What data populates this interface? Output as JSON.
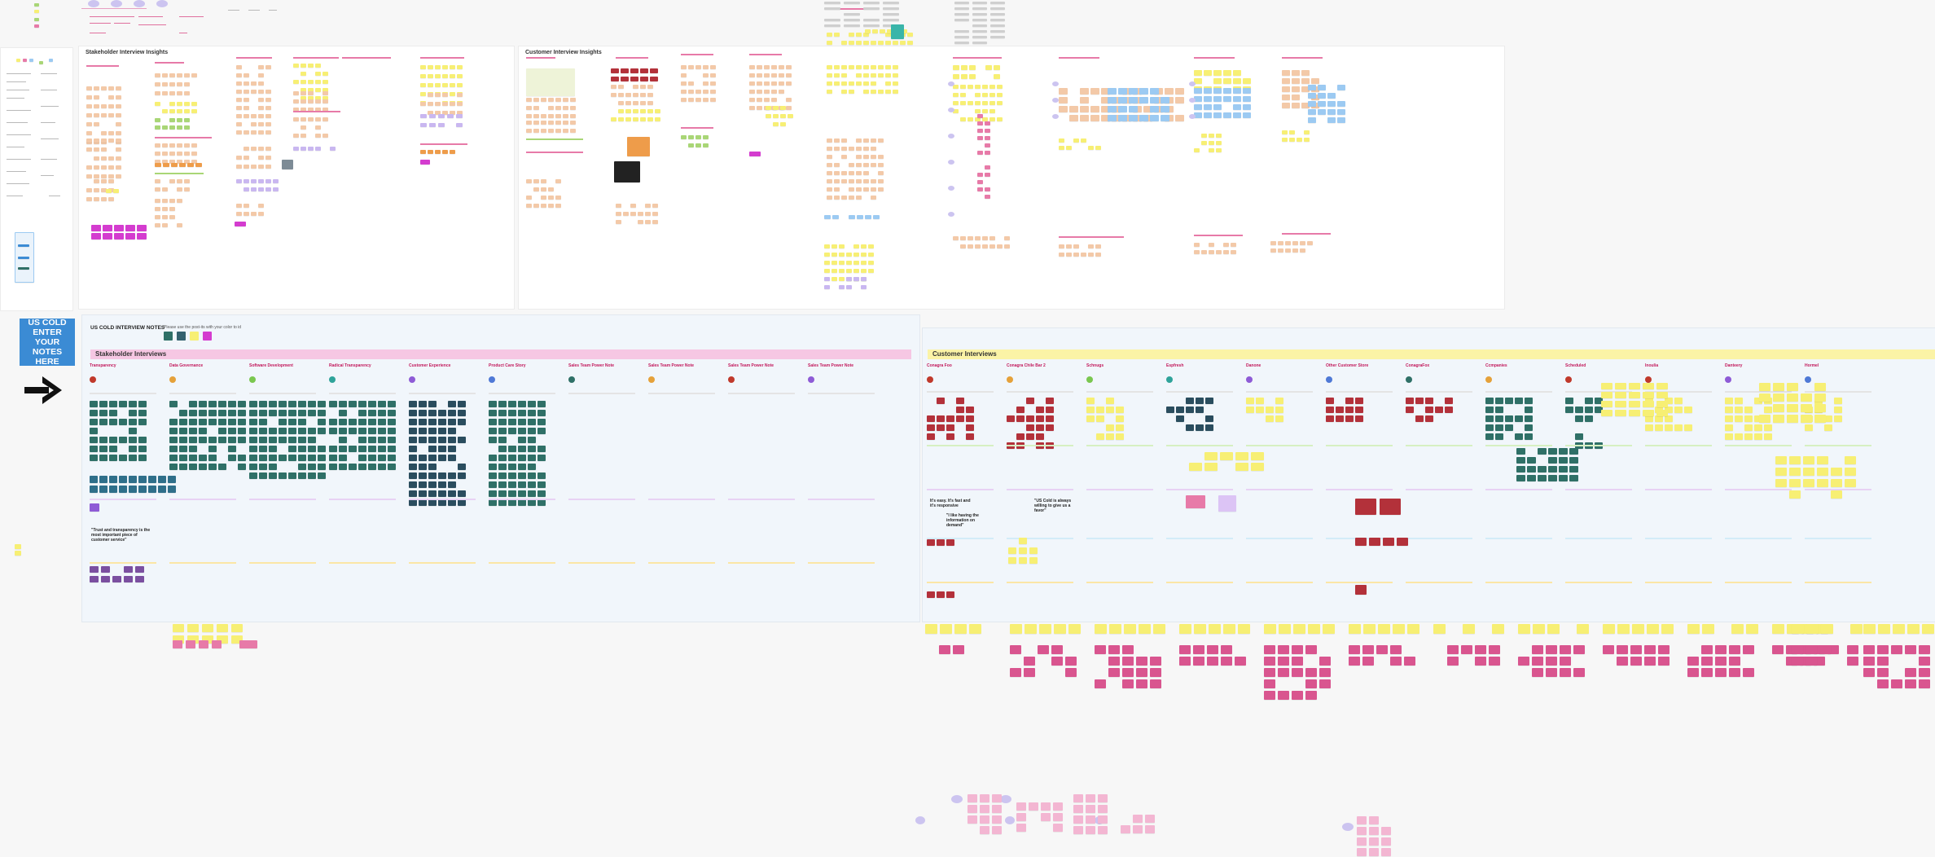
{
  "board": {
    "colors": {
      "peach": "#f3c9a8",
      "yellow": "#f7ef74",
      "teal": "#2f7067",
      "red": "#b3313a",
      "pink": "#e77aa8",
      "magenta": "#d43ccf",
      "lavender": "#c9b7f0",
      "blue": "#9ccaf2",
      "orange": "#ee9c4a",
      "green": "#a9d676",
      "accent_blue": "#3b8bd4",
      "band_pink": "#f6c7e3",
      "band_yellow": "#fbf3a6"
    }
  },
  "frames": {
    "stakeholder_insights": {
      "title": "Stakeholder Interview Insights"
    },
    "customer_insights": {
      "title": "Customer Interview Insights"
    }
  },
  "notes_area": {
    "title": "US COLD INTERVIEW NOTES",
    "subtitle": "Please use the post-its with your color to id",
    "callout_text": "US COLD ENTER YOUR NOTES HERE",
    "arrow_icon": "right-arrow-icon",
    "stakeholder_band_label": "Stakeholder Interviews",
    "customer_band_label": "Customer Interviews"
  },
  "stakeholder_columns": [
    {
      "name": "Transparency"
    },
    {
      "name": "Data Governance"
    },
    {
      "name": "Software Development"
    },
    {
      "name": "Radical Transparency"
    },
    {
      "name": "Customer Experience"
    },
    {
      "name": "Product Care Story"
    },
    {
      "name": "Sales Team Power Note"
    },
    {
      "name": "Sales Team Power Note"
    },
    {
      "name": "Sales Team Power Note"
    },
    {
      "name": "Sales Team Power Note"
    }
  ],
  "customer_columns": [
    {
      "name": "Conagra Foo"
    },
    {
      "name": "Conagra Chile Bar 2"
    },
    {
      "name": "Schnugs"
    },
    {
      "name": "Espfresh"
    },
    {
      "name": "Danone"
    },
    {
      "name": "Other Customer Store"
    },
    {
      "name": "ConagraFox"
    },
    {
      "name": "Ccmpanies"
    },
    {
      "name": "Scheduled"
    },
    {
      "name": "Inoulia"
    },
    {
      "name": "Danteery"
    },
    {
      "name": "Hormel"
    }
  ],
  "quotes": {
    "stakeholder_quote": "\"Trust and transparency is the most important piece of customer service\"",
    "customer_quote_1": "It's easy. It's fast and it's responsive",
    "customer_quote_2": "\"I like having the information on demand\"",
    "customer_quote_3": "\"US Cold is always willing to give us a favor\""
  }
}
